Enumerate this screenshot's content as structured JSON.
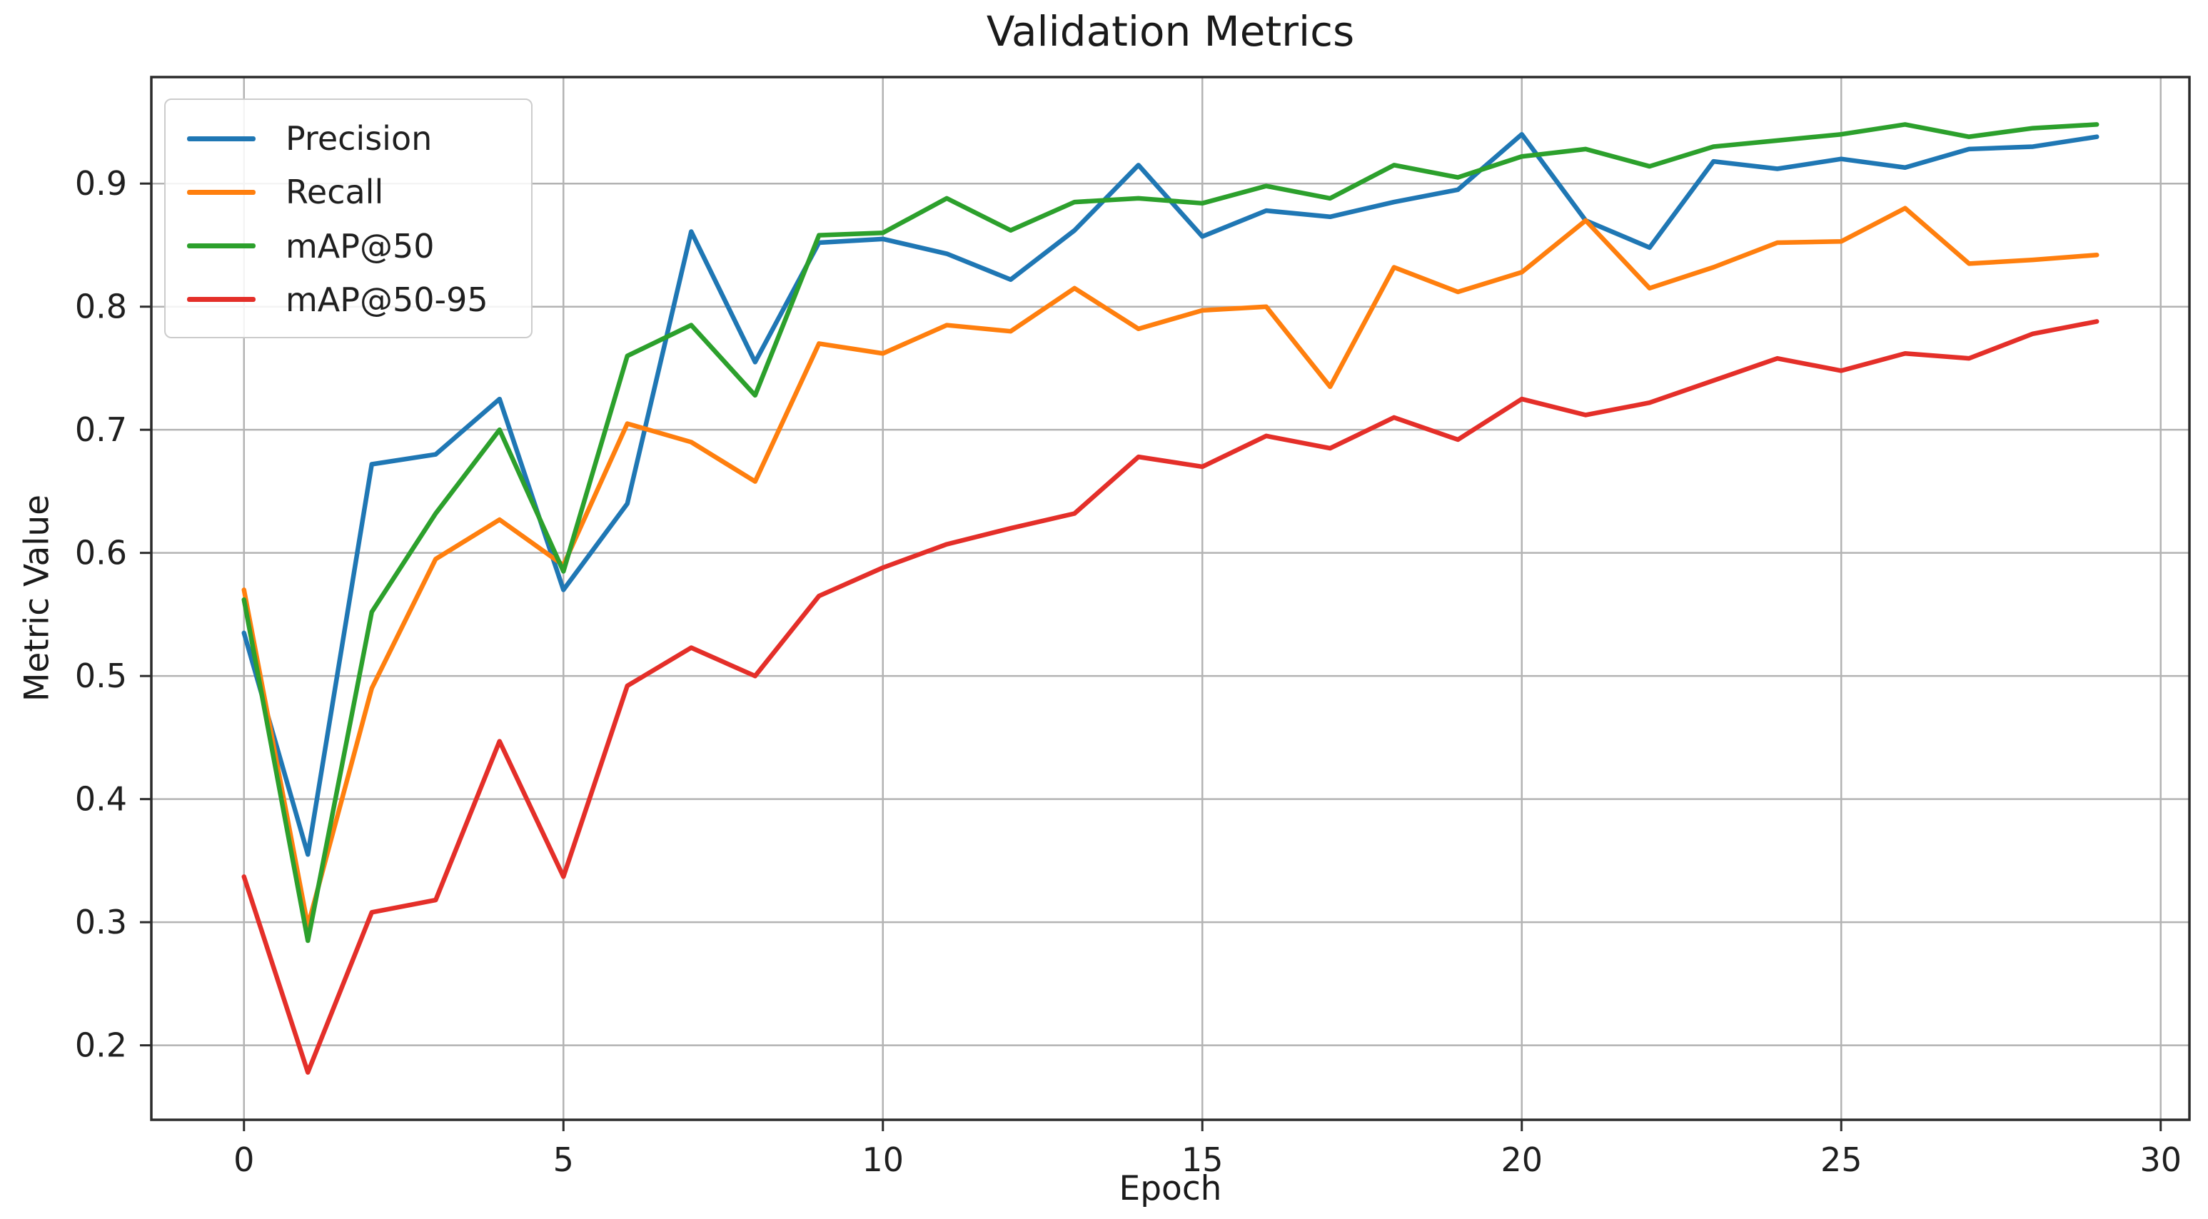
{
  "chart_data": {
    "type": "line",
    "title": "Validation Metrics",
    "xlabel": "Epoch",
    "ylabel": "Metric Value",
    "grid": true,
    "legend_position": "upper left",
    "xticks": [
      0,
      5,
      10,
      15,
      20,
      25,
      30
    ],
    "yticks": [
      0.2,
      0.3,
      0.4,
      0.5,
      0.6,
      0.7,
      0.8,
      0.9
    ],
    "xlim": [
      -1.45,
      30.45
    ],
    "ylim": [
      0.1395,
      0.9865
    ],
    "x": [
      0,
      1,
      2,
      3,
      4,
      5,
      6,
      7,
      8,
      9,
      10,
      11,
      12,
      13,
      14,
      15,
      16,
      17,
      18,
      19,
      20,
      21,
      22,
      23,
      24,
      25,
      26,
      27,
      28,
      29
    ],
    "series": [
      {
        "name": "Precision",
        "color": "#1f77b4",
        "values": [
          0.535,
          0.355,
          0.672,
          0.68,
          0.725,
          0.57,
          0.64,
          0.861,
          0.755,
          0.852,
          0.855,
          0.843,
          0.822,
          0.862,
          0.915,
          0.857,
          0.878,
          0.873,
          0.885,
          0.895,
          0.94,
          0.87,
          0.848,
          0.918,
          0.912,
          0.92,
          0.913,
          0.928,
          0.93,
          0.938
        ]
      },
      {
        "name": "Recall",
        "color": "#ff7f0e",
        "values": [
          0.57,
          0.297,
          0.49,
          0.595,
          0.627,
          0.59,
          0.705,
          0.69,
          0.658,
          0.77,
          0.762,
          0.785,
          0.78,
          0.815,
          0.782,
          0.797,
          0.8,
          0.735,
          0.832,
          0.812,
          0.828,
          0.87,
          0.815,
          0.832,
          0.852,
          0.853,
          0.88,
          0.835,
          0.838,
          0.842
        ]
      },
      {
        "name": "mAP@50",
        "color": "#2ca02c",
        "values": [
          0.562,
          0.285,
          0.552,
          0.632,
          0.7,
          0.585,
          0.76,
          0.785,
          0.728,
          0.858,
          0.86,
          0.888,
          0.862,
          0.885,
          0.888,
          0.884,
          0.898,
          0.888,
          0.915,
          0.905,
          0.922,
          0.928,
          0.914,
          0.93,
          0.935,
          0.94,
          0.948,
          0.938,
          0.945,
          0.948
        ]
      },
      {
        "name": "mAP@50-95",
        "color": "#e42f29",
        "values": [
          0.337,
          0.178,
          0.308,
          0.318,
          0.447,
          0.337,
          0.492,
          0.523,
          0.5,
          0.565,
          0.588,
          0.607,
          0.62,
          0.632,
          0.678,
          0.67,
          0.695,
          0.685,
          0.71,
          0.692,
          0.725,
          0.712,
          0.722,
          0.74,
          0.758,
          0.748,
          0.762,
          0.758,
          0.778,
          0.788
        ]
      }
    ]
  }
}
